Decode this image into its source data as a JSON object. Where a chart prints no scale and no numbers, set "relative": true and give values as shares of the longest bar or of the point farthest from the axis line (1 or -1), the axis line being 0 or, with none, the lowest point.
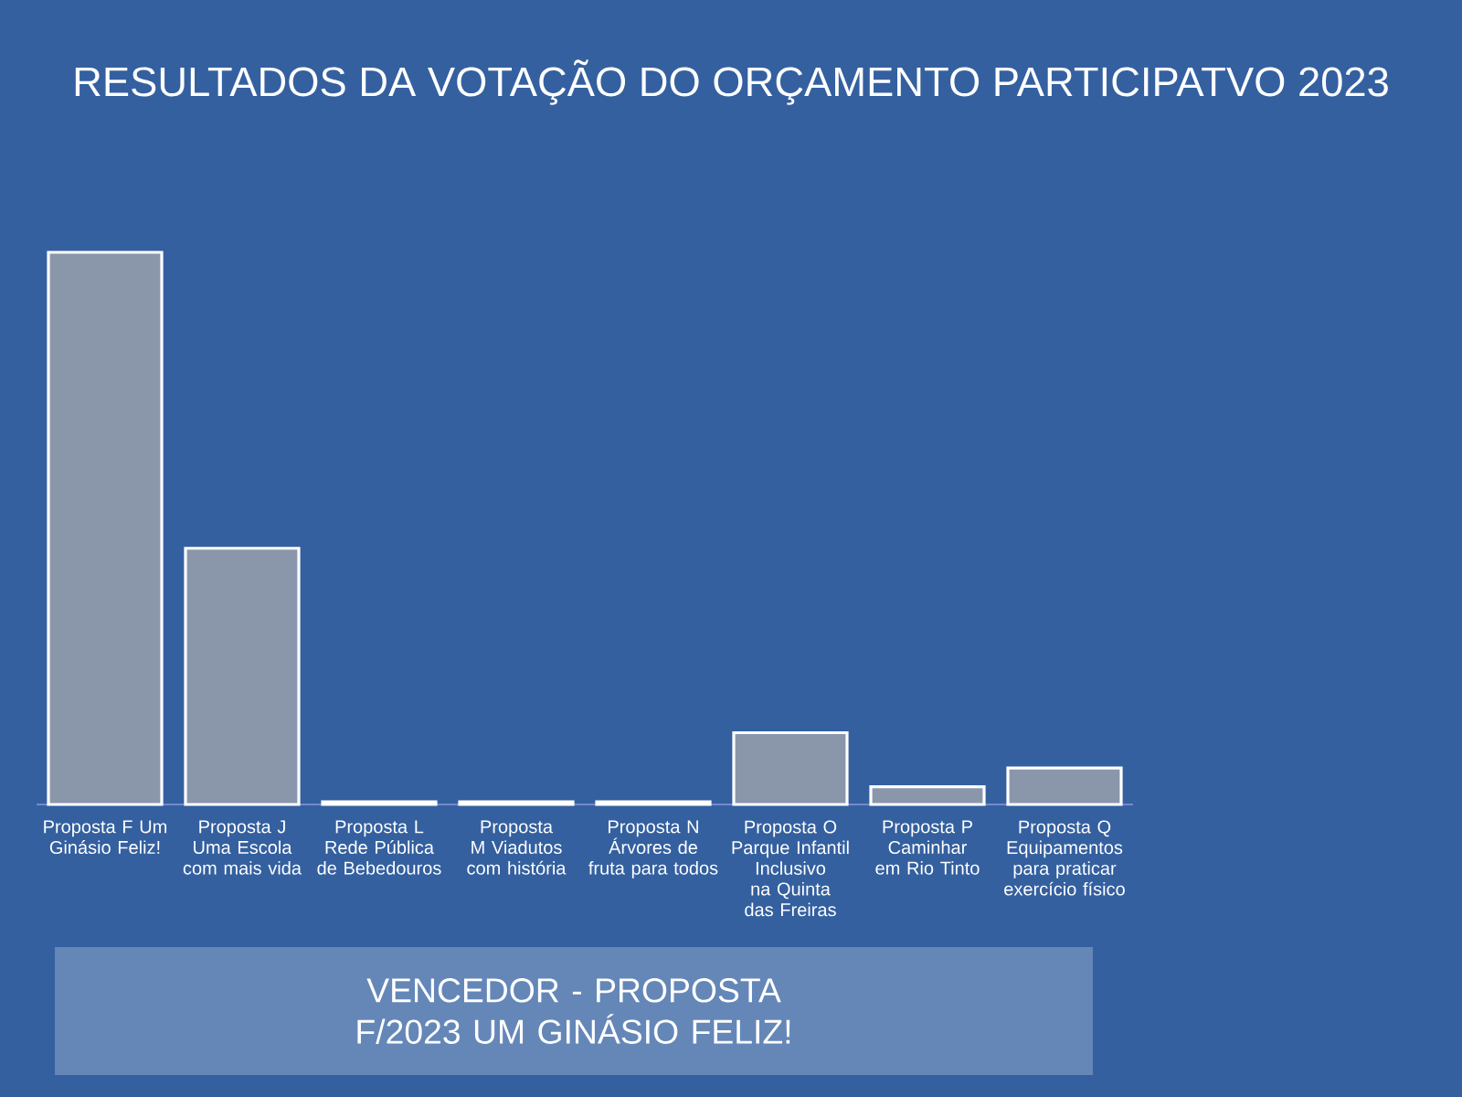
{
  "chart_data": {
    "type": "bar",
    "title": "RESULTADOS DA VOTAÇÃO DO ORÇAMENTO PARTICIPATVO 2023",
    "categories": [
      "Proposta F Um Ginásio Feliz!",
      "Proposta J Uma Escola com mais vida",
      "Proposta L Rede Pública de Bebedouros",
      "Proposta M Viadutos com história",
      "Proposta N Árvores de fruta para todos",
      "Proposta O Parque Infantil Inclusivo na Quinta das Freiras",
      "Proposta P Caminhar em Rio Tinto",
      "Proposta Q Equipamentos para praticar exercício físico"
    ],
    "values": [
      1,
      0.464,
      0.005,
      0.005,
      0.005,
      0.13,
      0.032,
      0.066
    ],
    "color": "#8a97ab",
    "relative": true,
    "annotations": [
      "VENCEDOR - PROPOSTA F/2023 UM GINÁSIO FELIZ!"
    ]
  }
}
